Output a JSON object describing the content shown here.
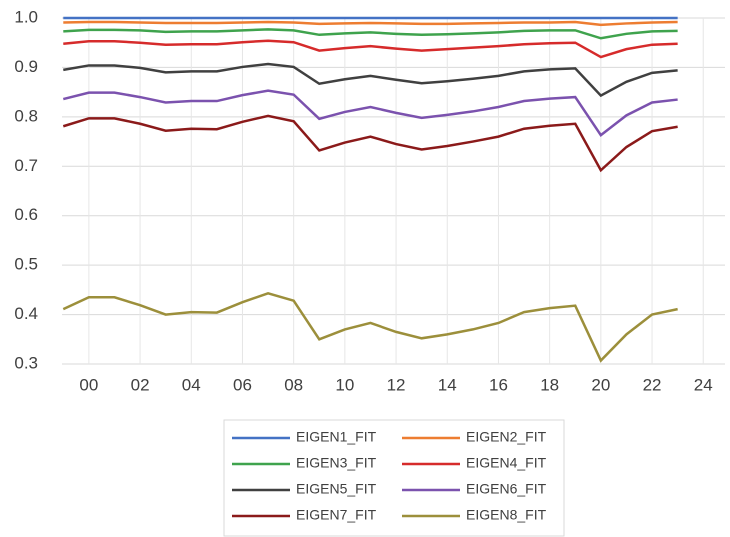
{
  "chart_data": {
    "type": "line",
    "x": [
      -1,
      0,
      1,
      2,
      3,
      4,
      5,
      6,
      7,
      8,
      9,
      10,
      11,
      12,
      13,
      14,
      15,
      16,
      17,
      18,
      19,
      20,
      21,
      22,
      23
    ],
    "xlim": [
      -1.05,
      24.85
    ],
    "xticks": [
      {
        "value": 0,
        "label": "00"
      },
      {
        "value": 2,
        "label": "02"
      },
      {
        "value": 4,
        "label": "04"
      },
      {
        "value": 6,
        "label": "06"
      },
      {
        "value": 8,
        "label": "08"
      },
      10,
      12,
      14,
      16,
      18,
      20,
      22,
      24
    ],
    "ylim": [
      0.3,
      1.0
    ],
    "yticks": [
      0.3,
      0.4,
      0.5,
      0.6,
      0.7,
      0.8,
      0.9,
      {
        "value": 1.0,
        "label": "1.0"
      }
    ],
    "grid": true,
    "series": [
      {
        "name": "EIGEN1_FIT",
        "color": "#4472c4",
        "values": [
          1,
          1,
          1,
          1,
          1,
          1,
          1,
          1,
          1,
          1,
          1,
          1,
          1,
          1,
          1,
          1,
          1,
          1,
          1,
          1,
          1,
          1,
          1,
          1,
          1
        ]
      },
      {
        "name": "EIGEN2_FIT",
        "color": "#ed7d31",
        "values": [
          0.991,
          0.992,
          0.992,
          0.991,
          0.99,
          0.99,
          0.99,
          0.991,
          0.992,
          0.991,
          0.988,
          0.989,
          0.99,
          0.989,
          0.988,
          0.988,
          0.989,
          0.99,
          0.991,
          0.991,
          0.992,
          0.986,
          0.989,
          0.991,
          0.992
        ]
      },
      {
        "name": "EIGEN3_FIT",
        "color": "#3fa34d",
        "values": [
          0.973,
          0.976,
          0.976,
          0.975,
          0.972,
          0.973,
          0.973,
          0.975,
          0.977,
          0.975,
          0.966,
          0.969,
          0.971,
          0.968,
          0.966,
          0.967,
          0.969,
          0.971,
          0.974,
          0.975,
          0.975,
          0.959,
          0.968,
          0.973,
          0.974
        ]
      },
      {
        "name": "EIGEN4_FIT",
        "color": "#d62b2b",
        "values": [
          0.948,
          0.953,
          0.953,
          0.95,
          0.946,
          0.947,
          0.947,
          0.951,
          0.954,
          0.951,
          0.934,
          0.939,
          0.943,
          0.938,
          0.934,
          0.937,
          0.94,
          0.943,
          0.947,
          0.949,
          0.95,
          0.921,
          0.937,
          0.946,
          0.948
        ]
      },
      {
        "name": "EIGEN5_FIT",
        "color": "#404040",
        "values": [
          0.895,
          0.904,
          0.904,
          0.899,
          0.89,
          0.892,
          0.892,
          0.901,
          0.907,
          0.901,
          0.867,
          0.876,
          0.883,
          0.875,
          0.868,
          0.872,
          0.877,
          0.883,
          0.892,
          0.896,
          0.898,
          0.843,
          0.871,
          0.889,
          0.894
        ]
      },
      {
        "name": "EIGEN6_FIT",
        "color": "#7b52ae",
        "values": [
          0.836,
          0.849,
          0.849,
          0.84,
          0.829,
          0.832,
          0.832,
          0.844,
          0.853,
          0.845,
          0.796,
          0.81,
          0.82,
          0.808,
          0.798,
          0.804,
          0.811,
          0.82,
          0.832,
          0.837,
          0.84,
          0.763,
          0.803,
          0.829,
          0.835
        ]
      },
      {
        "name": "EIGEN7_FIT",
        "color": "#8b1a1a",
        "values": [
          0.781,
          0.797,
          0.797,
          0.786,
          0.772,
          0.776,
          0.775,
          0.79,
          0.802,
          0.791,
          0.732,
          0.748,
          0.76,
          0.745,
          0.734,
          0.741,
          0.75,
          0.76,
          0.776,
          0.782,
          0.786,
          0.692,
          0.739,
          0.771,
          0.78
        ]
      },
      {
        "name": "EIGEN8_FIT",
        "color": "#9c8f3b",
        "values": [
          0.411,
          0.435,
          0.435,
          0.419,
          0.4,
          0.405,
          0.404,
          0.425,
          0.443,
          0.428,
          0.35,
          0.37,
          0.383,
          0.365,
          0.352,
          0.36,
          0.37,
          0.383,
          0.405,
          0.413,
          0.418,
          0.307,
          0.36,
          0.4,
          0.411
        ]
      }
    ]
  }
}
